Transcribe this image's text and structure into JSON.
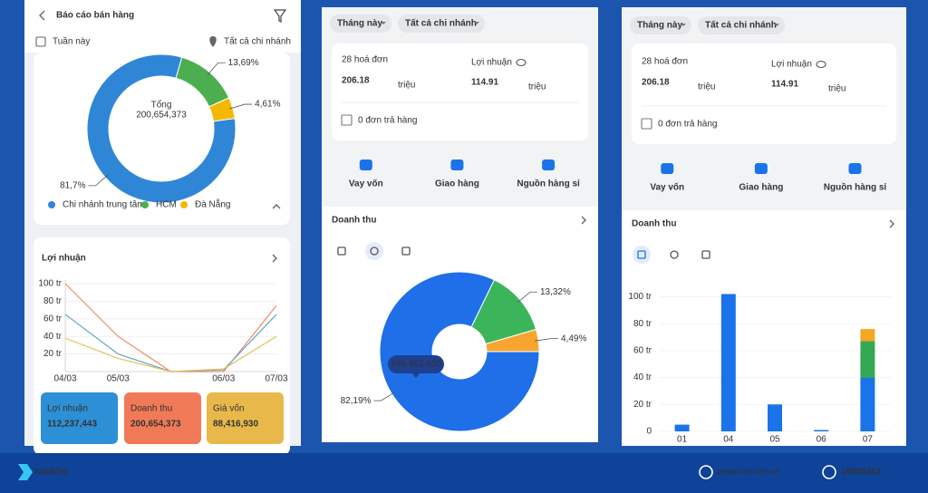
{
  "panels": [
    {
      "title": "Báo cáo bán hàng",
      "period": "Tuần này",
      "branch": "Tất cả chi nhánh",
      "profit_title": "Lợi nhuận",
      "cards": [
        {
          "label": "Lợi nhuận",
          "value": "112,237,443"
        },
        {
          "label": "Doanh thu",
          "value": "200,654,373"
        },
        {
          "label": "Giá vốn",
          "value": "88,416,930"
        }
      ]
    },
    {
      "period": "Tháng này",
      "branch": "Tất cả chi nhánh",
      "invoices": "28 hoá đơn",
      "revenue": "206.18",
      "revenue_unit": "triệu",
      "profit_label": "Lợi nhuận",
      "profit": "114.91",
      "profit_unit": "triệu",
      "returns": "0 đơn trả hàng",
      "actions": [
        "Vay vốn",
        "Giao hàng",
        "Nguồn hàng sỉ"
      ],
      "section": "Doanh thu"
    },
    {
      "period": "Tháng này",
      "branch": "Tất cả chi nhánh",
      "invoices": "28 hoá đơn",
      "revenue": "206.18",
      "revenue_unit": "triệu",
      "profit_label": "Lợi nhuận",
      "profit": "114.91",
      "profit_unit": "triệu",
      "returns": "0 đơn trả hàng",
      "actions": [
        "Vay vốn",
        "Giao hàng",
        "Nguồn hàng sỉ"
      ],
      "section": "Doanh thu"
    }
  ],
  "footer": {
    "brand": "KiotViet",
    "website": "www.kiotviet.vn",
    "phone": "18006162"
  },
  "chart_data": [
    {
      "type": "pie",
      "center_label": "Tổng",
      "total": "200,654,373",
      "categories": [
        "Chi nhánh trung tâm",
        "HCM",
        "Đà Nẵng"
      ],
      "values": [
        81.7,
        13.69,
        4.61
      ],
      "value_labels": [
        "81,7%",
        "13,69%",
        "4,61%"
      ],
      "colors": [
        "#2f86d6",
        "#4cae4f",
        "#f5b800"
      ]
    },
    {
      "type": "line",
      "categories": [
        "04/03",
        "05/03",
        null,
        "06/03",
        "07/03"
      ],
      "ylim": [
        0,
        100
      ],
      "yticks": [
        {
          "value": 20,
          "label": "20 tr"
        },
        {
          "value": 40,
          "label": "40 tr"
        },
        {
          "value": 60,
          "label": "60 tr"
        },
        {
          "value": 80,
          "label": "80 tr"
        },
        {
          "value": 100,
          "label": "100 tr"
        }
      ],
      "grid": true,
      "series": [
        {
          "color": "#f08a6a",
          "values": [
            100,
            40,
            0,
            0,
            75
          ]
        },
        {
          "color": "#5fa8c8",
          "values": [
            65,
            20,
            0,
            2,
            65
          ]
        },
        {
          "color": "#e3c25e",
          "values": [
            38,
            15,
            0,
            3,
            40
          ]
        }
      ]
    },
    {
      "type": "pie",
      "tooltip": "169,462,630",
      "values": [
        82.19,
        13.32,
        4.49
      ],
      "value_labels": [
        "82,19%",
        "13,32%",
        "4,49%"
      ],
      "colors": [
        "#1e6fe8",
        "#3cb55a",
        "#f8a530"
      ]
    },
    {
      "type": "bar",
      "stacked": true,
      "categories": [
        "01",
        "04",
        "05",
        "06",
        "07"
      ],
      "ylim": [
        0,
        105
      ],
      "yticks": [
        0,
        {
          "value": 20,
          "label": "20 tr"
        },
        {
          "value": 40,
          "label": "40 tr"
        },
        {
          "value": 60,
          "label": "60 tr"
        },
        {
          "value": 80,
          "label": "80 tr"
        },
        {
          "value": 100,
          "label": "100 tr"
        }
      ],
      "grid": true,
      "series": [
        {
          "color": "#1a73e8",
          "values": [
            5,
            102,
            20,
            1,
            40
          ]
        },
        {
          "color": "#34a853",
          "values": [
            0,
            0,
            0,
            0,
            27
          ]
        },
        {
          "color": "#f5a623",
          "values": [
            0,
            0,
            0,
            0,
            9
          ]
        }
      ]
    }
  ]
}
